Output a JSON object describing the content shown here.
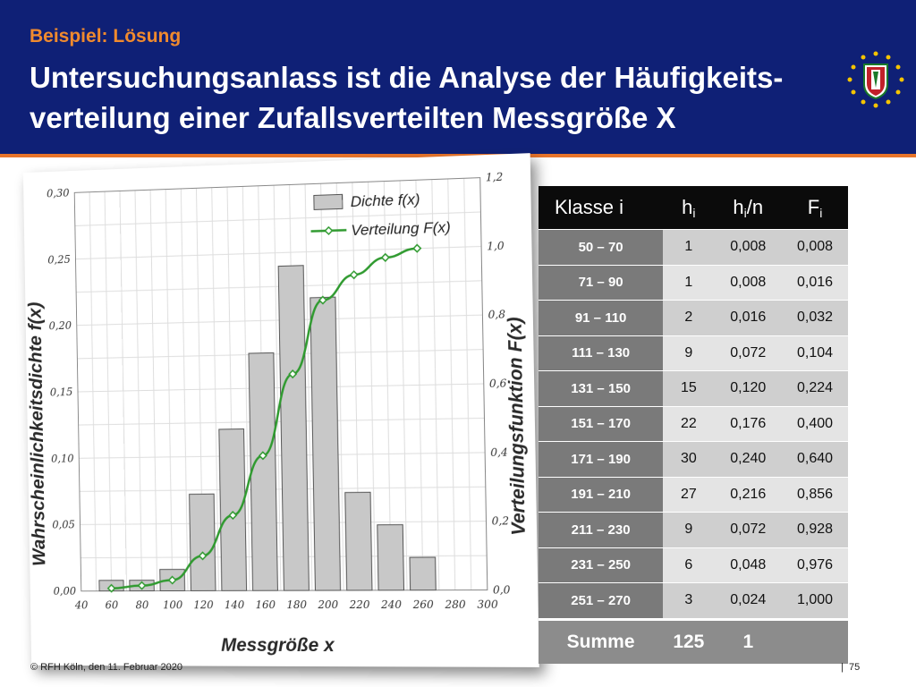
{
  "header": {
    "subtitle": "Beispiel: Lösung",
    "title": "Untersuchungsanlass ist die Analyse der Häufigkeits-verteilung einer Zufallsverteilten Messgröße X"
  },
  "footer": {
    "copyright": "© RFH Köln, den",
    "date": "11. Februar 2020",
    "page_sep": "|",
    "page": "75"
  },
  "table": {
    "headers": {
      "klasse": "Klasse i",
      "hi": "h",
      "hi_sub": "i",
      "hin": "h",
      "hin_sub": "i",
      "hin_suffix": "/n",
      "fi": "F",
      "fi_sub": "i"
    },
    "rows": [
      {
        "klasse": "50 – 70",
        "hi": "1",
        "hin": "0,008",
        "fi": "0,008"
      },
      {
        "klasse": "71 – 90",
        "hi": "1",
        "hin": "0,008",
        "fi": "0,016"
      },
      {
        "klasse": "91 – 110",
        "hi": "2",
        "hin": "0,016",
        "fi": "0,032"
      },
      {
        "klasse": "111 – 130",
        "hi": "9",
        "hin": "0,072",
        "fi": "0,104"
      },
      {
        "klasse": "131 – 150",
        "hi": "15",
        "hin": "0,120",
        "fi": "0,224"
      },
      {
        "klasse": "151 – 170",
        "hi": "22",
        "hin": "0,176",
        "fi": "0,400"
      },
      {
        "klasse": "171 – 190",
        "hi": "30",
        "hin": "0,240",
        "fi": "0,640"
      },
      {
        "klasse": "191 – 210",
        "hi": "27",
        "hin": "0,216",
        "fi": "0,856"
      },
      {
        "klasse": "211 – 230",
        "hi": "9",
        "hin": "0,072",
        "fi": "0,928"
      },
      {
        "klasse": "231 – 250",
        "hi": "6",
        "hin": "0,048",
        "fi": "0,976"
      },
      {
        "klasse": "251 – 270",
        "hi": "3",
        "hin": "0,024",
        "fi": "1,000"
      }
    ],
    "sum": {
      "label": "Summe",
      "hi": "125",
      "hin": "1"
    }
  },
  "chart_data": {
    "type": "bar",
    "xlabel": "Messgröße x",
    "ylabel": "Wahrscheinlichkeitsdichte f(x)",
    "y2label": "Verteilungsfunktion F(x)",
    "xlim": [
      40,
      300
    ],
    "ylim": [
      0,
      0.3
    ],
    "y2lim": [
      0,
      1.2
    ],
    "x_ticks": [
      "40",
      "60",
      "80",
      "100",
      "120",
      "140",
      "160",
      "180",
      "200",
      "220",
      "240",
      "260",
      "280",
      "300"
    ],
    "y_ticks": [
      "0,00",
      "0,05",
      "0,10",
      "0,15",
      "0,20",
      "0,25",
      "0,30"
    ],
    "y2_ticks": [
      "0,0",
      "0,2",
      "0,4",
      "0,6",
      "0,8",
      "1,0",
      "1,2"
    ],
    "grid": true,
    "legend": "top-right",
    "series": [
      {
        "name": "Dichte f(x)",
        "type": "bar",
        "color": "#c8c8c8",
        "x": [
          60,
          80,
          100,
          120,
          140,
          160,
          180,
          200,
          220,
          240,
          260
        ],
        "values": [
          0.008,
          0.008,
          0.016,
          0.072,
          0.12,
          0.176,
          0.24,
          0.216,
          0.072,
          0.048,
          0.024
        ]
      },
      {
        "name": "Verteilung F(x)",
        "type": "line",
        "axis": "y2",
        "color": "#2f9a2f",
        "x": [
          60,
          80,
          100,
          120,
          140,
          160,
          180,
          200,
          220,
          240,
          260
        ],
        "values": [
          0.008,
          0.016,
          0.032,
          0.104,
          0.224,
          0.4,
          0.64,
          0.856,
          0.928,
          0.976,
          1.0
        ]
      }
    ]
  }
}
